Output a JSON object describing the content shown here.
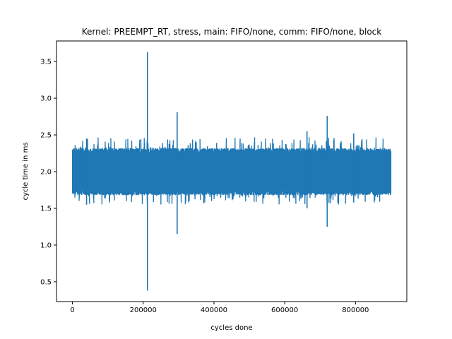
{
  "chart_data": {
    "type": "line",
    "title": "Kernel: PREEMPT_RT, stress, main: FIFO/none, comm: FIFO/none, block",
    "xlabel": "cycles done",
    "ylabel": "cycle time in ms",
    "xlim": [
      -45000,
      945000
    ],
    "ylim": [
      0.23,
      3.78
    ],
    "x_ticks": [
      0,
      200000,
      400000,
      600000,
      800000
    ],
    "x_tick_labels": [
      "0",
      "200000",
      "400000",
      "600000",
      "800000"
    ],
    "y_ticks": [
      0.5,
      1.0,
      1.5,
      2.0,
      2.5,
      3.0,
      3.5
    ],
    "y_tick_labels": [
      "0.5",
      "1.0",
      "1.5",
      "2.0",
      "2.5",
      "3.0",
      "3.5"
    ],
    "grid": false,
    "legend": "none",
    "series": [
      {
        "color": "#1f77b4",
        "x_range": [
          0,
          900000
        ],
        "typical_band": [
          1.68,
          2.32
        ],
        "extreme_band": [
          1.55,
          2.47
        ],
        "spikes": [
          {
            "x": 212000,
            "high": 3.63,
            "low": 0.38
          },
          {
            "x": 296000,
            "high": 2.81,
            "low": 1.15
          },
          {
            "x": 720000,
            "high": 2.76,
            "low": 1.25
          },
          {
            "x": 663000,
            "high": 2.55,
            "low": 1.5
          },
          {
            "x": 795000,
            "high": 2.52,
            "low": 1.58
          },
          {
            "x": 40000,
            "high": 2.45,
            "low": 1.55
          }
        ]
      }
    ]
  }
}
